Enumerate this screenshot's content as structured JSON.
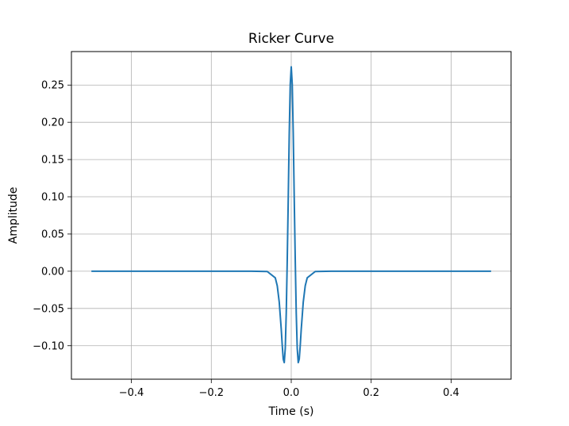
{
  "chart_data": {
    "type": "line",
    "title": "Ricker Curve",
    "xlabel": "Time (s)",
    "ylabel": "Amplitude",
    "xlim": [
      -0.55,
      0.55
    ],
    "ylim": [
      -0.145,
      0.295
    ],
    "grid": true,
    "series": [
      {
        "color": "#1f77b4",
        "x": [
          -0.5,
          -0.4,
          -0.3,
          -0.2,
          -0.1,
          -0.06,
          -0.04,
          -0.035,
          -0.03,
          -0.025,
          -0.0225,
          -0.02,
          -0.0175,
          -0.015,
          -0.0125,
          -0.01,
          -0.0075,
          -0.005,
          -0.0025,
          0.0,
          0.0025,
          0.005,
          0.0075,
          0.01,
          0.0125,
          0.015,
          0.0175,
          0.02,
          0.0225,
          0.025,
          0.03,
          0.035,
          0.04,
          0.06,
          0.1,
          0.2,
          0.3,
          0.4,
          0.5
        ],
        "y": [
          0.0,
          0.0,
          0.0,
          0.0,
          0.0,
          -0.0004,
          -0.0088,
          -0.0196,
          -0.0417,
          -0.078,
          -0.0998,
          -0.1181,
          -0.1227,
          -0.1036,
          -0.0563,
          0.0152,
          0.0967,
          0.1845,
          0.2509,
          0.2745,
          0.2509,
          0.1845,
          0.0967,
          0.0152,
          -0.0563,
          -0.1036,
          -0.1227,
          -0.1181,
          -0.0998,
          -0.078,
          -0.0417,
          -0.0196,
          -0.0088,
          -0.0004,
          0.0,
          0.0,
          0.0,
          0.0,
          0.0
        ]
      }
    ],
    "xticks": [
      -0.4,
      -0.2,
      0.0,
      0.2,
      0.4
    ],
    "xtick_labels": [
      "−0.4",
      "−0.2",
      "0.0",
      "0.2",
      "0.4"
    ],
    "yticks": [
      -0.1,
      -0.05,
      0.0,
      0.05,
      0.1,
      0.15,
      0.2,
      0.25
    ],
    "ytick_labels": [
      "−0.10",
      "−0.05",
      "0.00",
      "0.05",
      "0.10",
      "0.15",
      "0.20",
      "0.25"
    ],
    "colors": {
      "line": "#1f77b4",
      "grid": "#b0b0b0",
      "axes": "#000000",
      "background": "#ffffff"
    }
  }
}
